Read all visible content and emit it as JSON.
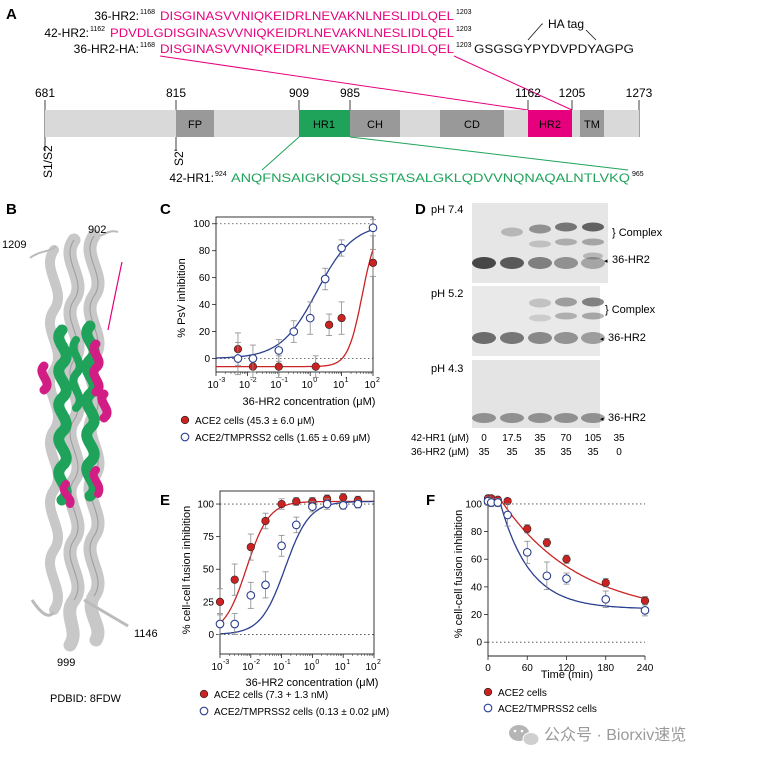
{
  "panel_a": {
    "label": "A",
    "seq_rows": [
      {
        "name": "36-HR2:",
        "start": "1168",
        "seq": "DISGINASVVNIQKEIDRLNEVAKNLNESLIDLQEL",
        "end": "1203",
        "tail": ""
      },
      {
        "name": "42-HR2:",
        "start": "1162",
        "seq": "PDVDLGDISGINASVVNIQKEIDRLNEVAKNLNESLIDLQEL",
        "end": "1203",
        "tail": ""
      },
      {
        "name": "36-HR2-HA:",
        "start": "1168",
        "seq": "DISGINASVVNIQKEIDRLNEVAKNLNESLIDLQEL",
        "end": "1203",
        "tail": "GSGSGYPYDVPDYAGPG"
      }
    ],
    "ha_tag": "HA tag",
    "positions": [
      "681",
      "815",
      "909",
      "985",
      "1162",
      "1205",
      "1273"
    ],
    "domains": [
      "FP",
      "HR1",
      "CH",
      "CD",
      "HR2",
      "TM"
    ],
    "sites": [
      "S1/S2",
      "S2'"
    ],
    "hr1_peptide": {
      "name": "42-HR1:",
      "start": "924",
      "seq": "ANQFNSAIGKIQDSLSSTASALGKLQDVVNQNAQALNTLVKQ",
      "end": "965"
    },
    "colors": {
      "hr2": "#e6007e",
      "hr1": "#1fa35b",
      "domain": "#999999",
      "bar": "#d9d9d9"
    }
  },
  "panel_b": {
    "label": "B",
    "labels": [
      "1209",
      "902",
      "999",
      "1146"
    ],
    "pdb": "PDBID: 8FDW"
  },
  "panel_c": {
    "label": "C",
    "ylabel": "% PsV inhibition",
    "xlabel": "36-HR2 concentration (μM)",
    "yticks": [
      "0",
      "20",
      "40",
      "60",
      "80",
      "100"
    ],
    "legend": [
      "ACE2 cells (45.3 ± 6.0 μM)",
      "ACE2/TMPRSS2 cells (1.65 ± 0.69 μM)"
    ]
  },
  "panel_d": {
    "label": "D",
    "ph": [
      "pH 7.4",
      "pH 5.2",
      "pH 4.3"
    ],
    "complex": "} Complex",
    "monomer": "36-HR2",
    "row1_label": "42-HR1 (μM)",
    "row1": [
      "0",
      "17.5",
      "35",
      "70",
      "105",
      "35"
    ],
    "row2_label": "36-HR2 (μM)",
    "row2": [
      "35",
      "35",
      "35",
      "35",
      "35",
      "0"
    ]
  },
  "panel_e": {
    "label": "E",
    "ylabel": "% cell-cell fusion inhibition",
    "xlabel": "36-HR2 concentration (μM)",
    "yticks": [
      "0",
      "25",
      "50",
      "75",
      "100"
    ],
    "legend": [
      "ACE2 cells (7.3 + 1.3 nM)",
      "ACE2/TMPRSS2 cells (0.13 ± 0.02 μM)"
    ]
  },
  "panel_f": {
    "label": "F",
    "ylabel": "% cell-cell fusion inhibition",
    "xlabel": "Time (min)",
    "yticks": [
      "0",
      "20",
      "40",
      "60",
      "80",
      "100"
    ],
    "xticks": [
      "0",
      "60",
      "120",
      "180",
      "240"
    ],
    "legend": [
      "ACE2 cells",
      "ACE2/TMPRSS2 cells"
    ]
  },
  "watermark": "公众号 · Biorxiv速览",
  "chart_data": [
    {
      "type": "scatter",
      "panel": "C",
      "xlabel": "36-HR2 concentration (μM)",
      "ylabel": "% PsV inhibition",
      "xscale": "log",
      "xlim": [
        0.001,
        100
      ],
      "ylim": [
        -10,
        105
      ],
      "series": [
        {
          "name": "ACE2 cells (45.3 ± 6.0 μM)",
          "color": "#cc2222",
          "x": [
            0.005,
            0.015,
            0.1,
            1.5,
            4,
            10,
            100
          ],
          "y": [
            7,
            -6,
            -6,
            -6,
            25,
            30,
            71
          ],
          "err": [
            12,
            8,
            8,
            8,
            8,
            12,
            10
          ]
        },
        {
          "name": "ACE2/TMPRSS2 cells (1.65 ± 0.69 μM)",
          "color": "#2b3f8f",
          "x": [
            0.005,
            0.015,
            0.1,
            0.3,
            1,
            3,
            10,
            100
          ],
          "y": [
            0,
            0,
            6,
            20,
            30,
            59,
            82,
            97
          ],
          "err": [
            12,
            10,
            8,
            8,
            12,
            8,
            6,
            6
          ]
        }
      ],
      "fit_ic50": [
        45.3,
        1.65
      ]
    },
    {
      "type": "scatter",
      "panel": "E",
      "xlabel": "36-HR2 concentration (μM)",
      "ylabel": "% cell-cell fusion inhibition",
      "xscale": "log",
      "xlim": [
        0.001,
        100
      ],
      "ylim": [
        -15,
        110
      ],
      "series": [
        {
          "name": "ACE2 cells (7.3 + 1.3 nM)",
          "color": "#cc2222",
          "x": [
            0.001,
            0.003,
            0.01,
            0.03,
            0.1,
            0.3,
            1,
            3,
            10,
            30
          ],
          "y": [
            25,
            42,
            67,
            87,
            100,
            102,
            102,
            104,
            105,
            103
          ],
          "err": [
            10,
            12,
            10,
            6,
            4,
            3,
            3,
            3,
            3,
            3
          ]
        },
        {
          "name": "ACE2/TMPRSS2 cells (0.13 ± 0.02 μM)",
          "color": "#2b3f8f",
          "x": [
            0.001,
            0.003,
            0.01,
            0.03,
            0.1,
            0.3,
            1,
            3,
            10,
            30
          ],
          "y": [
            8,
            8,
            30,
            38,
            68,
            84,
            98,
            100,
            99,
            100
          ],
          "err": [
            8,
            8,
            10,
            10,
            8,
            6,
            4,
            4,
            3,
            3
          ]
        }
      ],
      "fit_ic50": [
        0.0073,
        0.13
      ]
    },
    {
      "type": "scatter",
      "panel": "F",
      "xlabel": "Time (min)",
      "ylabel": "% cell-cell fusion inhibition",
      "xlim": [
        0,
        240
      ],
      "ylim": [
        -10,
        105
      ],
      "series": [
        {
          "name": "ACE2 cells",
          "color": "#cc2222",
          "x": [
            0,
            5,
            15,
            30,
            60,
            90,
            120,
            180,
            240
          ],
          "y": [
            104,
            104,
            103,
            102,
            82,
            72,
            60,
            43,
            30
          ],
          "err": [
            2,
            2,
            2,
            2,
            3,
            3,
            3,
            3,
            3
          ]
        },
        {
          "name": "ACE2/TMPRSS2 cells",
          "color": "#2b3f8f",
          "x": [
            0,
            5,
            15,
            30,
            60,
            90,
            120,
            180,
            240
          ],
          "y": [
            102,
            101,
            101,
            92,
            65,
            48,
            46,
            31,
            23
          ],
          "err": [
            3,
            3,
            3,
            8,
            8,
            10,
            4,
            6,
            4
          ]
        }
      ]
    }
  ]
}
